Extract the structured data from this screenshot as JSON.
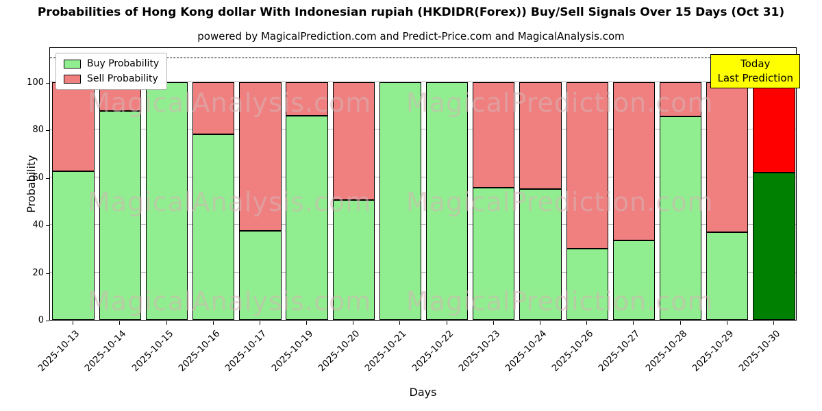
{
  "title": "Probabilities of Hong Kong dollar With Indonesian rupiah (HKDIDR(Forex)) Buy/Sell Signals Over 15 Days (Oct 31)",
  "subtitle": "powered by MagicalPrediction.com and Predict-Price.com and MagicalAnalysis.com",
  "chart_data": {
    "type": "bar",
    "stacked": true,
    "title": "Probabilities of Hong Kong dollar With Indonesian rupiah (HKDIDR(Forex)) Buy/Sell Signals Over 15 Days (Oct 31)",
    "xlabel": "Days",
    "ylabel": "Probability",
    "categories": [
      "2025-10-13",
      "2025-10-14",
      "2025-10-15",
      "2025-10-16",
      "2025-10-17",
      "2025-10-19",
      "2025-10-20",
      "2025-10-21",
      "2025-10-22",
      "2025-10-23",
      "2025-10-24",
      "2025-10-26",
      "2025-10-27",
      "2025-10-28",
      "2025-10-29",
      "2025-10-30"
    ],
    "series": [
      {
        "name": "Buy Probability",
        "color": "#90EE90",
        "values": [
          62.5,
          88,
          100,
          78,
          37.5,
          86,
          50.5,
          100,
          100,
          55.5,
          55,
          30,
          33.5,
          85.5,
          37,
          62
        ]
      },
      {
        "name": "Sell Probability",
        "color": "#F08080",
        "values": [
          37.5,
          12,
          0,
          22,
          62.5,
          14,
          49.5,
          0,
          0,
          44.5,
          45,
          70,
          66.5,
          14.5,
          63,
          38
        ]
      }
    ],
    "last_bar_colors": {
      "buy": "#008000",
      "sell": "#FF0000"
    },
    "yticks": [
      0,
      20,
      40,
      60,
      80,
      100
    ],
    "ylim": [
      0,
      115
    ],
    "dashed_line_y": 110,
    "grid": true,
    "legend_position": "upper-left"
  },
  "annotation": {
    "line1": "Today",
    "line2": "Last Prediction",
    "bg_color": "#FFFF00"
  },
  "watermarks": [
    "MagicalAnalysis.com",
    "MagicalPrediction.com"
  ]
}
